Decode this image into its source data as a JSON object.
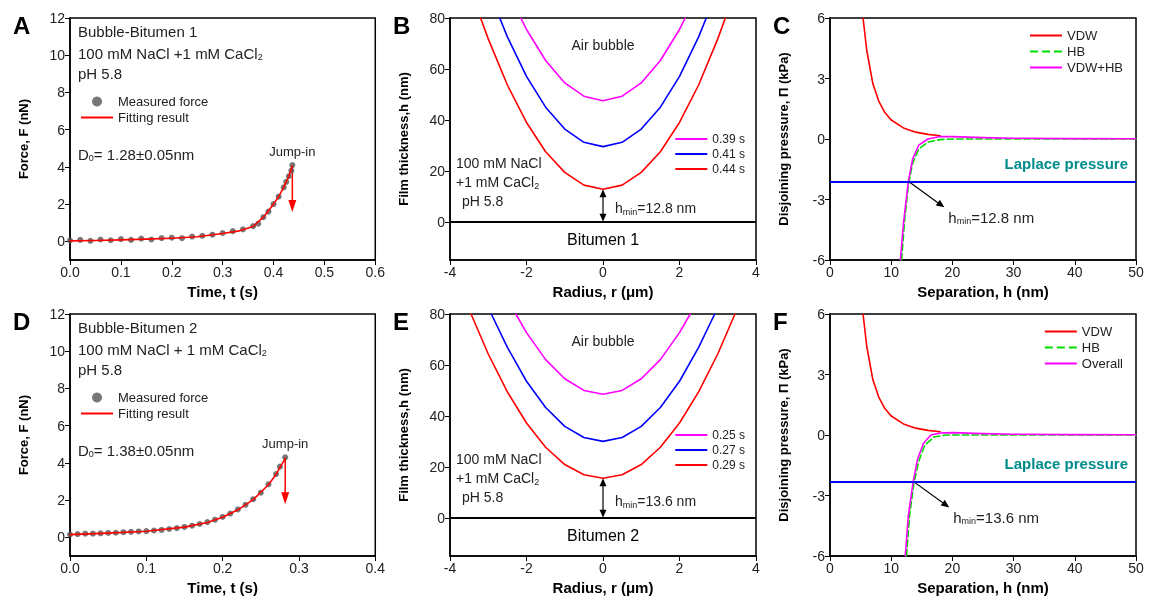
{
  "chart_data": [
    {
      "type": "line",
      "title": "A",
      "xlabel": "Time, t (s)",
      "ylabel": "Force, F (nN)",
      "xlim": [
        0,
        0.6
      ],
      "ylim": [
        -1,
        12
      ],
      "xticks": [
        {
          "value": 0,
          "label": "0.0"
        },
        0.1,
        0.2,
        0.3,
        0.4,
        0.5,
        0.6
      ],
      "yticks": [
        0,
        2,
        4,
        6,
        8,
        10,
        12
      ],
      "legend": "top left",
      "series": [
        {
          "name": "Measured force",
          "type": "scatter",
          "marker": "circle",
          "color": "#555555",
          "x": [
            0,
            0.02,
            0.04,
            0.06,
            0.08,
            0.1,
            0.12,
            0.14,
            0.16,
            0.18,
            0.2,
            0.22,
            0.24,
            0.26,
            0.28,
            0.3,
            0.32,
            0.34,
            0.36,
            0.37,
            0.38,
            0.39,
            0.4,
            0.41,
            0.42,
            0.425,
            0.43,
            0.435,
            0.437
          ],
          "values": [
            0.05,
            0.08,
            0.03,
            0.1,
            0.06,
            0.12,
            0.08,
            0.15,
            0.1,
            0.18,
            0.2,
            0.17,
            0.26,
            0.3,
            0.36,
            0.45,
            0.55,
            0.65,
            0.82,
            0.95,
            1.3,
            1.6,
            2.0,
            2.4,
            2.9,
            3.2,
            3.5,
            3.8,
            4.1
          ]
        },
        {
          "name": "Fitting result",
          "type": "line",
          "marker": "none",
          "color": "#ff0000",
          "x": [
            0,
            0.05,
            0.1,
            0.15,
            0.2,
            0.25,
            0.3,
            0.33,
            0.36,
            0.38,
            0.4,
            0.41,
            0.42,
            0.43,
            0.437
          ],
          "values": [
            0.03,
            0.05,
            0.08,
            0.12,
            0.17,
            0.25,
            0.42,
            0.55,
            0.8,
            1.3,
            2.0,
            2.4,
            2.9,
            3.5,
            4.05
          ]
        }
      ],
      "annotations": [
        "Bubble-Bitumen 1",
        "100 mM NaCl +1 mM CaCl$_{2}$",
        "pH 5.8",
        "D$_{0}$= 1.28±0.05nm",
        {
          "text": "Jump-in",
          "x": 0.437,
          "y": 4.05
        }
      ]
    },
    {
      "type": "line",
      "title": "B",
      "xlabel": "Radius, r (μm)",
      "ylabel": "Film thickness,h (nm)",
      "xlim": [
        -4,
        4
      ],
      "ylim": [
        -15,
        80
      ],
      "xticks": [
        -4,
        -2,
        0,
        2,
        4
      ],
      "yticks": [
        0,
        20,
        40,
        60,
        80
      ],
      "legend": "right",
      "series": [
        {
          "name": "0.39 s",
          "type": "line",
          "marker": "none",
          "color": "#ff00ff",
          "x": [
            -2.15,
            -2,
            -1.5,
            -1,
            -0.5,
            0,
            0.5,
            1,
            1.5,
            2,
            2.15
          ],
          "values": [
            80,
            75.5,
            63.3,
            54.5,
            49.3,
            47.5,
            49.3,
            54.5,
            63.3,
            75.5,
            80
          ]
        },
        {
          "name": "0.41 s",
          "type": "line",
          "marker": "none",
          "color": "#0000ff",
          "x": [
            -2.7,
            -2.5,
            -2,
            -1.5,
            -1,
            -0.5,
            0,
            0.5,
            1,
            1.5,
            2,
            2.5,
            2.7
          ],
          "values": [
            80,
            72.6,
            57.1,
            45,
            36.4,
            31.2,
            29.5,
            31.2,
            36.4,
            45,
            57.1,
            72.6,
            80
          ]
        },
        {
          "name": "0.44 s",
          "type": "line",
          "marker": "none",
          "color": "#ff0000",
          "x": [
            -3.2,
            -3,
            -2.5,
            -2,
            -1.5,
            -1,
            -0.5,
            0,
            0.5,
            1,
            1.5,
            2,
            2.5,
            3,
            3.2
          ],
          "values": [
            80,
            71.8,
            53.7,
            39,
            27.5,
            19.4,
            14.4,
            12.8,
            14.4,
            19.4,
            27.5,
            39,
            53.7,
            71.8,
            80
          ]
        }
      ],
      "ref_lines": [
        {
          "axis": "y",
          "value": 0,
          "label": "Bitumen 1",
          "color": "#000000"
        }
      ],
      "annotations": [
        "Air bubble",
        "100 mM NaCl",
        "+1 mM CaCl$_{2}$",
        "pH 5.8",
        {
          "text": "h$_{min}$=12.8 nm",
          "x": 0,
          "y": 12.8
        }
      ]
    },
    {
      "type": "line",
      "title": "C",
      "xlabel": "Separation, h (nm)",
      "ylabel": "Disjoining pressure, Π (kPa)",
      "xlim": [
        0,
        50
      ],
      "ylim": [
        -6,
        6
      ],
      "xticks": [
        0,
        10,
        20,
        30,
        40,
        50
      ],
      "yticks": [
        -6,
        -3,
        0,
        3,
        6
      ],
      "legend": "top right",
      "series": [
        {
          "name": "VDW",
          "type": "line",
          "marker": "none",
          "color": "#ff0000",
          "x": [
            5.4,
            6,
            7,
            8,
            9,
            10,
            12,
            14,
            16,
            18
          ],
          "values": [
            6,
            4.4,
            2.75,
            1.85,
            1.3,
            0.94,
            0.55,
            0.34,
            0.23,
            0.16
          ]
        },
        {
          "name": "HB",
          "type": "line",
          "marker": "none",
          "line_style": "dashed",
          "color": "#00dd00",
          "x": [
            11.7,
            12.2,
            12.8,
            13.5,
            14.5,
            16,
            18,
            20,
            30,
            50
          ],
          "values": [
            -6,
            -4,
            -2.3,
            -1.2,
            -0.5,
            -0.15,
            -0.03,
            0,
            0,
            0
          ]
        },
        {
          "name": "VDW+HB",
          "type": "line",
          "marker": "none",
          "color": "#ff00ff",
          "x": [
            11.5,
            12,
            12.8,
            13.5,
            14.5,
            16,
            18,
            20,
            25,
            30,
            40,
            50
          ],
          "values": [
            -6,
            -4.2,
            -2.1,
            -1,
            -0.3,
            0,
            0.12,
            0.12,
            0.07,
            0.04,
            0.02,
            0.01
          ]
        }
      ],
      "ref_lines": [
        {
          "axis": "y",
          "value": -2.1,
          "label": "Laplace pressure",
          "color": "#0000ff"
        }
      ],
      "annotations": [
        {
          "text": "h$_{min}$=12.8 nm",
          "x": 12.8,
          "y": -2.1
        }
      ]
    },
    {
      "type": "line",
      "title": "D",
      "xlabel": "Time, t (s)",
      "ylabel": "Force, F (nN)",
      "xlim": [
        0,
        0.4
      ],
      "ylim": [
        -1,
        12
      ],
      "xticks": [
        {
          "value": 0,
          "label": "0.0"
        },
        0.1,
        0.2,
        0.3,
        0.4
      ],
      "yticks": [
        0,
        2,
        4,
        6,
        8,
        10,
        12
      ],
      "legend": "top left",
      "series": [
        {
          "name": "Measured force",
          "type": "scatter",
          "marker": "circle",
          "color": "#555555",
          "x": [
            0,
            0.01,
            0.02,
            0.03,
            0.04,
            0.05,
            0.06,
            0.07,
            0.08,
            0.09,
            0.1,
            0.11,
            0.12,
            0.13,
            0.14,
            0.15,
            0.16,
            0.17,
            0.18,
            0.19,
            0.2,
            0.21,
            0.22,
            0.23,
            0.24,
            0.25,
            0.26,
            0.27,
            0.275,
            0.282
          ],
          "values": [
            0.15,
            0.18,
            0.2,
            0.2,
            0.22,
            0.24,
            0.25,
            0.28,
            0.3,
            0.32,
            0.34,
            0.37,
            0.4,
            0.45,
            0.5,
            0.56,
            0.63,
            0.72,
            0.82,
            0.95,
            1.1,
            1.28,
            1.5,
            1.75,
            2.05,
            2.4,
            2.85,
            3.4,
            3.8,
            4.3
          ]
        },
        {
          "name": "Fitting result",
          "type": "line",
          "marker": "none",
          "color": "#ff0000",
          "x": [
            0,
            0.05,
            0.1,
            0.15,
            0.18,
            0.2,
            0.22,
            0.24,
            0.26,
            0.27,
            0.282
          ],
          "values": [
            0.15,
            0.23,
            0.33,
            0.55,
            0.8,
            1.08,
            1.48,
            2.03,
            2.83,
            3.38,
            4.25
          ]
        }
      ],
      "annotations": [
        "Bubble-Bitumen 2",
        "100 mM NaCl + 1 mM CaCl$_{2}$",
        "pH 5.8",
        "D$_{0}$= 1.38±0.05nm",
        {
          "text": "Jump-in",
          "x": 0.282,
          "y": 4.25
        }
      ]
    },
    {
      "type": "line",
      "title": "E",
      "xlabel": "Radius, r (μm)",
      "ylabel": "Film thickness,h (nm)",
      "xlim": [
        -4,
        4
      ],
      "ylim": [
        -15,
        80
      ],
      "xticks": [
        -4,
        -2,
        0,
        2,
        4
      ],
      "yticks": [
        0,
        20,
        40,
        60,
        80
      ],
      "legend": "right",
      "series": [
        {
          "name": "0.25 s",
          "type": "line",
          "marker": "none",
          "color": "#ff00ff",
          "x": [
            -2.28,
            -2,
            -1.5,
            -1,
            -0.5,
            0,
            0.5,
            1,
            1.5,
            2,
            2.28
          ],
          "values": [
            80,
            72.7,
            62.1,
            54.6,
            50,
            48.5,
            50,
            54.6,
            62.1,
            72.7,
            80
          ]
        },
        {
          "name": "0.27 s",
          "type": "line",
          "marker": "none",
          "color": "#0000ff",
          "x": [
            -2.92,
            -2.5,
            -2,
            -1.5,
            -1,
            -0.5,
            0,
            0.5,
            1,
            1.5,
            2,
            2.5,
            2.92
          ],
          "values": [
            80,
            66.9,
            53.6,
            43.3,
            35.9,
            31.5,
            30,
            31.5,
            35.9,
            43.3,
            53.6,
            66.9,
            80
          ]
        },
        {
          "name": "0.29 s",
          "type": "line",
          "marker": "none",
          "color": "#ff0000",
          "x": [
            -3.45,
            -3,
            -2.5,
            -2,
            -1.5,
            -1,
            -0.5,
            0,
            0.5,
            1,
            1.5,
            2,
            2.5,
            3,
            3.45
          ],
          "values": [
            80,
            64.3,
            49.4,
            37.2,
            27.7,
            20.9,
            16.9,
            15.5,
            16.9,
            20.9,
            27.7,
            37.2,
            49.4,
            64.3,
            80
          ]
        }
      ],
      "ref_lines": [
        {
          "axis": "y",
          "value": 0,
          "label": "Bitumen 2",
          "color": "#000000"
        }
      ],
      "annotations": [
        "Air bubble",
        "100 mM NaCl",
        "+1 mM CaCl$_{2}$",
        "pH 5.8",
        {
          "text": "h$_{min}$=13.6 nm",
          "x": 0,
          "y": 15.5
        }
      ]
    },
    {
      "type": "line",
      "title": "F",
      "xlabel": "Separation, h (nm)",
      "ylabel": "Disjoining pressure, Π (kPa)",
      "xlim": [
        0,
        50
      ],
      "ylim": [
        -6,
        6
      ],
      "xticks": [
        0,
        10,
        20,
        30,
        40,
        50
      ],
      "yticks": [
        -6,
        -3,
        0,
        3,
        6
      ],
      "legend": "top right",
      "series": [
        {
          "name": "VDW",
          "type": "line",
          "marker": "none",
          "color": "#ff0000",
          "x": [
            5.4,
            6,
            7,
            8,
            9,
            10,
            12,
            14,
            16,
            18
          ],
          "values": [
            6,
            4.4,
            2.75,
            1.85,
            1.3,
            0.94,
            0.55,
            0.34,
            0.23,
            0.16
          ]
        },
        {
          "name": "HB",
          "type": "line",
          "marker": "none",
          "line_style": "dashed",
          "color": "#00dd00",
          "x": [
            12.5,
            13,
            13.7,
            14.5,
            15.5,
            17,
            19,
            30,
            50
          ],
          "values": [
            -6,
            -4,
            -2.4,
            -1.3,
            -0.5,
            -0.1,
            0,
            0,
            0
          ]
        },
        {
          "name": "Overall",
          "type": "line",
          "marker": "none",
          "color": "#ff00ff",
          "x": [
            12.3,
            12.8,
            13.6,
            14.3,
            15.3,
            16.5,
            18,
            20,
            25,
            30,
            40,
            50
          ],
          "values": [
            -6,
            -4,
            -2.3,
            -1.2,
            -0.4,
            0,
            0.1,
            0.12,
            0.07,
            0.04,
            0.02,
            0.01
          ]
        }
      ],
      "ref_lines": [
        {
          "axis": "y",
          "value": -2.3,
          "label": "Laplace pressure",
          "color": "#0000ff"
        }
      ],
      "annotations": [
        {
          "text": "h$_{min}$=13.6 nm",
          "x": 13.6,
          "y": -2.3
        }
      ]
    }
  ]
}
